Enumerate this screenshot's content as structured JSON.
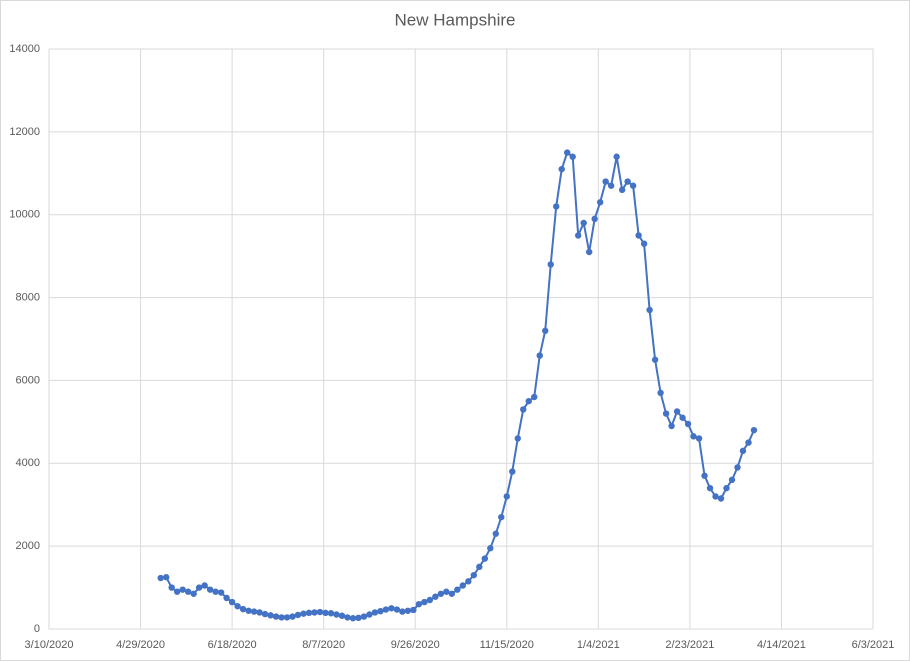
{
  "chart_data": {
    "type": "line",
    "title": "New Hampshire",
    "color": "#4472c4",
    "grid": true,
    "x": [
      "5/10/2020",
      "5/13/2020",
      "5/16/2020",
      "5/19/2020",
      "5/22/2020",
      "5/25/2020",
      "5/28/2020",
      "5/31/2020",
      "6/3/2020",
      "6/6/2020",
      "6/9/2020",
      "6/12/2020",
      "6/15/2020",
      "6/18/2020",
      "6/21/2020",
      "6/24/2020",
      "6/27/2020",
      "6/30/2020",
      "7/3/2020",
      "7/6/2020",
      "7/9/2020",
      "7/12/2020",
      "7/15/2020",
      "7/18/2020",
      "7/21/2020",
      "7/24/2020",
      "7/27/2020",
      "7/30/2020",
      "8/2/2020",
      "8/5/2020",
      "8/8/2020",
      "8/11/2020",
      "8/14/2020",
      "8/17/2020",
      "8/20/2020",
      "8/23/2020",
      "8/26/2020",
      "8/29/2020",
      "9/1/2020",
      "9/4/2020",
      "9/7/2020",
      "9/10/2020",
      "9/13/2020",
      "9/16/2020",
      "9/19/2020",
      "9/22/2020",
      "9/25/2020",
      "9/28/2020",
      "10/1/2020",
      "10/4/2020",
      "10/7/2020",
      "10/10/2020",
      "10/13/2020",
      "10/16/2020",
      "10/19/2020",
      "10/22/2020",
      "10/25/2020",
      "10/28/2020",
      "10/31/2020",
      "11/3/2020",
      "11/6/2020",
      "11/9/2020",
      "11/12/2020",
      "11/15/2020",
      "11/18/2020",
      "11/21/2020",
      "11/24/2020",
      "11/27/2020",
      "11/30/2020",
      "12/3/2020",
      "12/6/2020",
      "12/9/2020",
      "12/12/2020",
      "12/15/2020",
      "12/18/2020",
      "12/21/2020",
      "12/24/2020",
      "12/27/2020",
      "12/30/2020",
      "1/2/2021",
      "1/5/2021",
      "1/8/2021",
      "1/11/2021",
      "1/14/2021",
      "1/17/2021",
      "1/20/2021",
      "1/23/2021",
      "1/26/2021",
      "1/29/2021",
      "2/1/2021",
      "2/4/2021",
      "2/7/2021",
      "2/10/2021",
      "2/13/2021",
      "2/16/2021",
      "2/19/2021",
      "2/22/2021",
      "2/25/2021",
      "2/28/2021",
      "3/3/2021",
      "3/6/2021",
      "3/9/2021",
      "3/12/2021",
      "3/15/2021",
      "3/18/2021",
      "3/21/2021",
      "3/24/2021",
      "3/27/2021",
      "3/30/2021"
    ],
    "values": [
      1230,
      1250,
      1000,
      900,
      950,
      900,
      850,
      1000,
      1050,
      950,
      900,
      880,
      750,
      650,
      550,
      480,
      440,
      420,
      400,
      360,
      330,
      300,
      280,
      280,
      300,
      340,
      370,
      390,
      400,
      410,
      390,
      380,
      350,
      320,
      280,
      260,
      270,
      300,
      350,
      400,
      430,
      470,
      500,
      470,
      420,
      440,
      460,
      600,
      650,
      700,
      780,
      850,
      900,
      850,
      950,
      1050,
      1150,
      1300,
      1500,
      1700,
      1950,
      2300,
      2700,
      3200,
      3800,
      4600,
      5300,
      5500,
      5600,
      6600,
      7200,
      8800,
      10200,
      11100,
      11500,
      11400,
      9500,
      9800,
      9100,
      9900,
      10300,
      10800,
      10700,
      11400,
      10600,
      10800,
      10700,
      9500,
      9300,
      7700,
      6500,
      5700,
      5200,
      4900,
      5250,
      5100,
      4950,
      4650,
      4600,
      3700,
      3400,
      3200,
      3150,
      3400,
      3600,
      3900,
      4300,
      4500,
      4800
    ],
    "xlim": [
      "3/10/2020",
      "6/3/2021"
    ],
    "xticks": [
      "3/10/2020",
      "4/29/2020",
      "6/18/2020",
      "8/7/2020",
      "9/26/2020",
      "11/15/2020",
      "1/4/2021",
      "2/23/2021",
      "4/14/2021",
      "6/3/2021"
    ],
    "ylim": [
      0,
      14000
    ],
    "yticks": [
      0,
      2000,
      4000,
      6000,
      8000,
      10000,
      12000,
      14000
    ]
  }
}
